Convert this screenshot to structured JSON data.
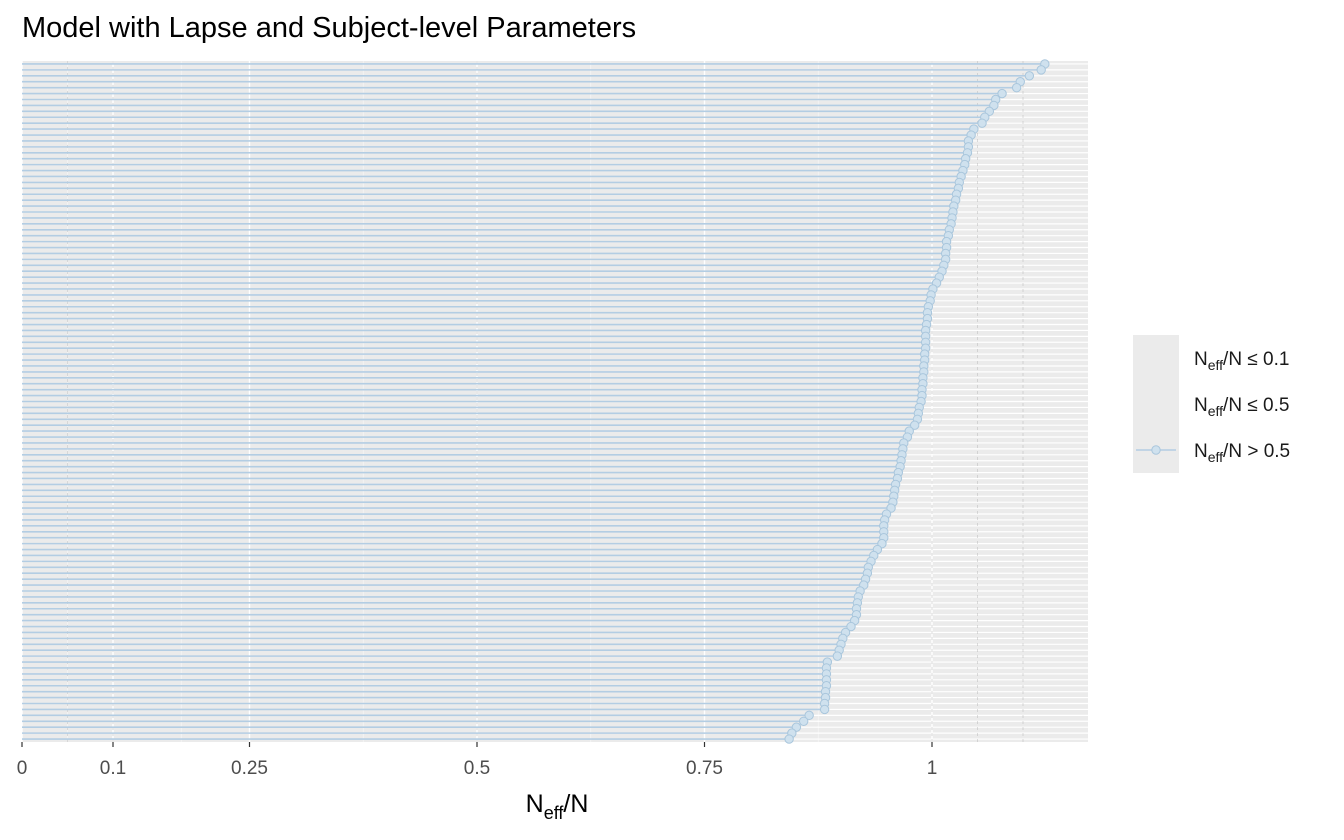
{
  "chart_data": {
    "type": "lollipop",
    "title": "Model with Lapse and Subject-level Parameters",
    "xlabel": {
      "main": "N",
      "sub": "eff",
      "rest": "/N"
    },
    "ylabel": "",
    "xlim": [
      0,
      1.17
    ],
    "x_ticks": [
      {
        "value": 0,
        "label": "0"
      },
      {
        "value": 0.1,
        "label": "0.1"
      },
      {
        "value": 0.25,
        "label": "0.25"
      },
      {
        "value": 0.5,
        "label": "0.5"
      },
      {
        "value": 0.75,
        "label": "0.75"
      },
      {
        "value": 1,
        "label": "1"
      }
    ],
    "minor_breaks": [
      0.05,
      0.175,
      0.375,
      0.625,
      0.875
    ],
    "dashed_refs": [
      0.05,
      0.1,
      0.5,
      1,
      1.05,
      1.1
    ],
    "grid": true,
    "colors": {
      "panel_bg": "#ebebeb",
      "grid_major": "#ffffff",
      "grid_minor": "#f5f5f5",
      "segment": "#b3cde3",
      "point_fill": "#cfe1ee",
      "point_edge": "#a9c6dc",
      "ref_line": "#aaaaaa"
    },
    "legend": {
      "position": "right",
      "entries": [
        {
          "main": "N",
          "sub": "eff",
          "rest": "/N ≤ 0.1",
          "has_mark": false
        },
        {
          "main": "N",
          "sub": "eff",
          "rest": "/N ≤ 0.5",
          "has_mark": false
        },
        {
          "main": "N",
          "sub": "eff",
          "rest": "/N > 0.5",
          "has_mark": true
        }
      ]
    },
    "series": [
      {
        "name": "N_eff/N > 0.5",
        "values": [
          1.124,
          1.12,
          1.107,
          1.097,
          1.093,
          1.077,
          1.07,
          1.068,
          1.063,
          1.058,
          1.055,
          1.046,
          1.043,
          1.04,
          1.04,
          1.039,
          1.037,
          1.036,
          1.034,
          1.032,
          1.03,
          1.029,
          1.027,
          1.026,
          1.024,
          1.023,
          1.022,
          1.021,
          1.019,
          1.018,
          1.016,
          1.016,
          1.015,
          1.015,
          1.013,
          1.011,
          1.008,
          1.005,
          1.001,
          0.999,
          0.998,
          0.996,
          0.995,
          0.995,
          0.994,
          0.993,
          0.993,
          0.993,
          0.993,
          0.992,
          0.992,
          0.991,
          0.991,
          0.99,
          0.99,
          0.989,
          0.989,
          0.988,
          0.986,
          0.985,
          0.984,
          0.981,
          0.975,
          0.973,
          0.969,
          0.968,
          0.967,
          0.966,
          0.965,
          0.963,
          0.962,
          0.96,
          0.959,
          0.958,
          0.957,
          0.955,
          0.95,
          0.948,
          0.947,
          0.947,
          0.947,
          0.945,
          0.94,
          0.936,
          0.933,
          0.93,
          0.929,
          0.927,
          0.925,
          0.921,
          0.919,
          0.918,
          0.917,
          0.917,
          0.915,
          0.911,
          0.905,
          0.902,
          0.9,
          0.898,
          0.896,
          0.885,
          0.884,
          0.884,
          0.884,
          0.884,
          0.883,
          0.883,
          0.882,
          0.882,
          0.865,
          0.859,
          0.851,
          0.846,
          0.843
        ]
      }
    ]
  }
}
